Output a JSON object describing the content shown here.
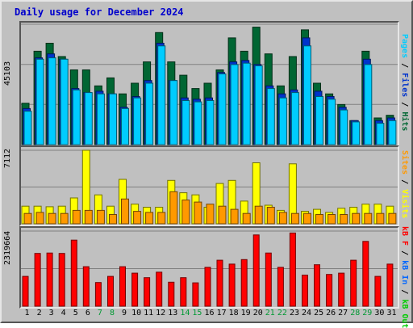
{
  "title": "Daily usage for December 2024",
  "colors": {
    "pages": "#00ccff",
    "files": "#0033cc",
    "hits": "#006633",
    "visits": "#ffff00",
    "sites": "#ff9900",
    "kb_in": "#0066ff",
    "kb_out": "#00cc00",
    "kb_f": "#ff0000",
    "weekend_day": "#009933",
    "separator": "#000000"
  },
  "right_labels": {
    "top": [
      {
        "text": "Pages",
        "color": "#00ccff"
      },
      {
        "text": " / ",
        "color": "#000000"
      },
      {
        "text": "Files",
        "color": "#0033cc"
      },
      {
        "text": " / ",
        "color": "#000000"
      },
      {
        "text": "Hits",
        "color": "#006633"
      }
    ],
    "middle": [
      {
        "text": "Sites",
        "color": "#ff9900"
      },
      {
        "text": " / ",
        "color": "#000000"
      },
      {
        "text": "Visits",
        "color": "#ffff00"
      }
    ],
    "bottom": [
      {
        "text": "kB F",
        "color": "#ff0000"
      },
      {
        "text": " / ",
        "color": "#000000"
      },
      {
        "text": "kB In",
        "color": "#0066ff"
      },
      {
        "text": " / ",
        "color": "#000000"
      },
      {
        "text": "kB Out",
        "color": "#00cc00"
      }
    ]
  },
  "chart_data": [
    {
      "type": "bar",
      "ymax_label": "45103",
      "ylim": [
        0,
        45103
      ],
      "grid": true,
      "categories": [
        "1",
        "2",
        "3",
        "4",
        "5",
        "6",
        "7",
        "8",
        "9",
        "10",
        "11",
        "12",
        "13",
        "14",
        "15",
        "16",
        "17",
        "18",
        "19",
        "20",
        "21",
        "22",
        "23",
        "24",
        "25",
        "26",
        "27",
        "28",
        "29",
        "30",
        "31"
      ],
      "weekend": [
        false,
        false,
        false,
        false,
        false,
        false,
        true,
        true,
        false,
        false,
        false,
        false,
        false,
        true,
        true,
        false,
        false,
        false,
        false,
        false,
        true,
        true,
        false,
        false,
        false,
        false,
        false,
        true,
        true,
        false,
        false
      ],
      "series": [
        {
          "name": "Hits",
          "color": "#006633",
          "values": [
            15500,
            35000,
            38000,
            33000,
            28000,
            28000,
            22000,
            25000,
            19000,
            23000,
            31000,
            42000,
            31000,
            26000,
            21000,
            23000,
            28000,
            40000,
            35000,
            44000,
            34000,
            22000,
            33000,
            43000,
            23000,
            19000,
            15000,
            9000,
            35000,
            10000,
            11000
          ]
        },
        {
          "name": "Files",
          "color": "#0033cc",
          "values": [
            13500,
            32500,
            34000,
            32000,
            21000,
            19500,
            20000,
            19000,
            14000,
            18000,
            24000,
            38000,
            24000,
            17500,
            17000,
            17500,
            27000,
            31000,
            31500,
            30000,
            22000,
            19000,
            20500,
            40000,
            20000,
            18000,
            14000,
            9000,
            32000,
            9000,
            10000
          ]
        },
        {
          "name": "Pages",
          "color": "#00ccff",
          "values": [
            12500,
            32000,
            32500,
            32000,
            20500,
            19500,
            19000,
            19000,
            13500,
            17500,
            23000,
            37000,
            24000,
            16500,
            16000,
            16500,
            26500,
            30000,
            30500,
            29500,
            21000,
            17500,
            19500,
            37000,
            18000,
            17000,
            13000,
            8500,
            30000,
            8000,
            9000
          ]
        }
      ]
    },
    {
      "type": "bar",
      "ymax_label": "7112",
      "ylim": [
        0,
        7112
      ],
      "grid": true,
      "categories": [
        "1",
        "2",
        "3",
        "4",
        "5",
        "6",
        "7",
        "8",
        "9",
        "10",
        "11",
        "12",
        "13",
        "14",
        "15",
        "16",
        "17",
        "18",
        "19",
        "20",
        "21",
        "22",
        "23",
        "24",
        "25",
        "26",
        "27",
        "28",
        "29",
        "30",
        "31"
      ],
      "series": [
        {
          "name": "Visits",
          "color": "#ffff00",
          "values": [
            1700,
            1700,
            1650,
            1700,
            2500,
            7112,
            2800,
            1700,
            4300,
            1900,
            1600,
            1600,
            4200,
            3000,
            2800,
            1600,
            3900,
            4200,
            2200,
            5900,
            1800,
            1300,
            5800,
            1200,
            1400,
            1100,
            1500,
            1600,
            1900,
            1900,
            1700
          ]
        },
        {
          "name": "Sites",
          "color": "#ff9900",
          "values": [
            1000,
            1100,
            1000,
            1000,
            1300,
            1300,
            1300,
            900,
            2400,
            1200,
            1100,
            1100,
            3100,
            2300,
            2100,
            1900,
            1700,
            1400,
            1000,
            1700,
            1600,
            1100,
            1000,
            1000,
            900,
            900,
            900,
            1000,
            1000,
            1000,
            1000
          ]
        }
      ]
    },
    {
      "type": "bar",
      "ymax_label": "2319664",
      "ylim": [
        0,
        2319664
      ],
      "grid": true,
      "categories": [
        "1",
        "2",
        "3",
        "4",
        "5",
        "6",
        "7",
        "8",
        "9",
        "10",
        "11",
        "12",
        "13",
        "14",
        "15",
        "16",
        "17",
        "18",
        "19",
        "20",
        "21",
        "22",
        "23",
        "24",
        "25",
        "26",
        "27",
        "28",
        "29",
        "30",
        "31"
      ],
      "series": [
        {
          "name": "kB F",
          "color": "#ff0000",
          "values": [
            920000,
            1630000,
            1640000,
            1630000,
            2040000,
            1220000,
            730000,
            920000,
            1220000,
            1020000,
            880000,
            1050000,
            740000,
            880000,
            720000,
            1200000,
            1420000,
            1300000,
            1440000,
            2200000,
            1640000,
            1200000,
            2260000,
            960000,
            1280000,
            980000,
            1020000,
            1420000,
            2000000,
            920000,
            1300000
          ]
        }
      ]
    }
  ]
}
